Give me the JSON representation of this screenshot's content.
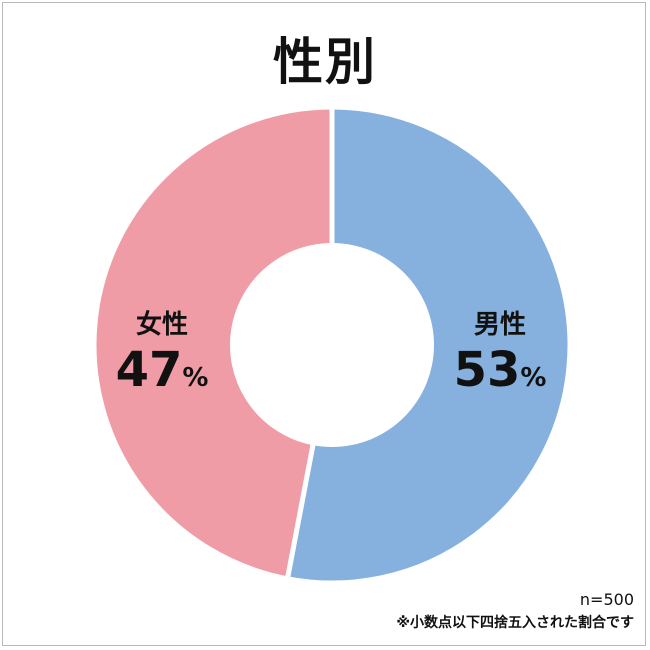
{
  "chart_data": {
    "type": "pie",
    "title": "性別",
    "slices": [
      {
        "name": "男性",
        "value": 53,
        "value_label": "53",
        "unit": "%",
        "color": "#86b1df"
      },
      {
        "name": "女性",
        "value": 47,
        "value_label": "47",
        "unit": "%",
        "color": "#f09ca6"
      }
    ],
    "donut": true
  },
  "notes": {
    "sample": "n=500",
    "rounding": "※小数点以下四捨五入された割合です"
  }
}
